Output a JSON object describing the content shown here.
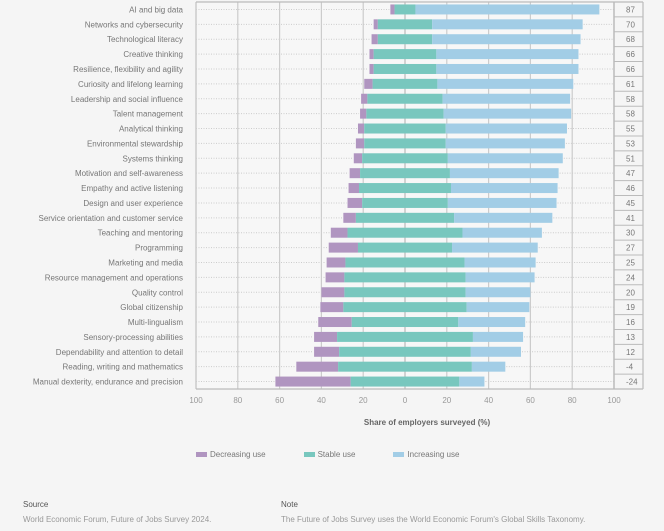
{
  "chart_data": {
    "type": "bar",
    "subtype": "diverging-stacked-horizontal",
    "xlabel": "Share of employers surveyed (%)",
    "xticks": [
      "100",
      "80",
      "60",
      "40",
      "20",
      "0",
      "20",
      "40",
      "60",
      "80",
      "100"
    ],
    "xlim": [
      -100,
      100
    ],
    "grid": true,
    "legend_position": "bottom",
    "colors": {
      "decreasing": "#b095c0",
      "stable": "#78c7be",
      "increasing": "#a2cde6"
    },
    "series": [
      {
        "name": "Decreasing use",
        "key": "decreasing"
      },
      {
        "name": "Stable use",
        "key": "stable"
      },
      {
        "name": "Increasing use",
        "key": "increasing"
      }
    ],
    "categories": [
      "AI and big data",
      "Networks and cybersecurity",
      "Technological literacy",
      "Creative thinking",
      "Resilience, flexibility and agility",
      "Curiosity and lifelong learning",
      "Leadership and social influence",
      "Talent management",
      "Analytical thinking",
      "Environmental stewardship",
      "Systems thinking",
      "Motivation and self-awareness",
      "Empathy and active listening",
      "Design and user experience",
      "Service orientation and customer service",
      "Teaching and mentoring",
      "Programming",
      "Marketing and media",
      "Resource management and operations",
      "Quality control",
      "Global citizenship",
      "Multi-lingualism",
      "Sensory-processing abilities",
      "Dependability and attention to detail",
      "Reading, writing and mathematics",
      "Manual dexterity, endurance and precision"
    ],
    "decreasing": [
      2,
      2,
      3,
      2,
      2,
      4,
      3,
      3,
      3,
      4,
      4,
      5,
      5,
      7,
      6,
      8,
      14,
      9,
      9,
      11,
      11,
      16,
      11,
      12,
      20,
      36
    ],
    "stable": [
      10,
      26,
      26,
      30,
      30,
      31,
      36,
      37,
      39,
      39,
      41,
      43,
      44,
      41,
      47,
      55,
      45,
      57,
      58,
      58,
      59,
      51,
      65,
      63,
      64,
      52
    ],
    "increasing": [
      88,
      72,
      71,
      68,
      68,
      65,
      61,
      61,
      58,
      57,
      55,
      52,
      51,
      52,
      47,
      38,
      41,
      34,
      33,
      31,
      30,
      32,
      24,
      24,
      16,
      12
    ],
    "net": [
      "87",
      "70",
      "68",
      "66",
      "66",
      "61",
      "58",
      "58",
      "55",
      "53",
      "51",
      "47",
      "46",
      "45",
      "41",
      "30",
      "27",
      "25",
      "24",
      "20",
      "19",
      "16",
      "13",
      "12",
      "-4",
      "-24"
    ]
  },
  "legend": {
    "decreasing": "Decreasing use",
    "stable": "Stable use",
    "increasing": "Increasing use"
  },
  "footer": {
    "source_heading": "Source",
    "source_text": "World Economic Forum, Future of Jobs Survey 2024.",
    "note_heading": "Note",
    "note_text": "The Future of Jobs Survey uses the World Economic Forum's Global Skills Taxonomy."
  }
}
